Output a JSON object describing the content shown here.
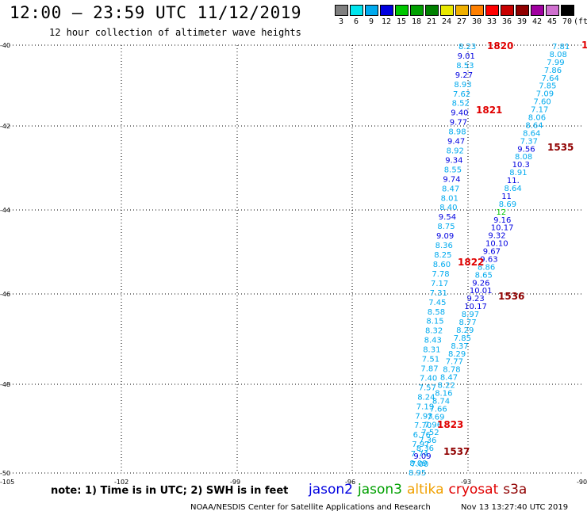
{
  "title": "12:00 – 23:59 UTC 11/12/2019",
  "subtitle": "12 hour collection of altimeter wave heights",
  "legend": {
    "unit": "(ft)",
    "items": [
      {
        "label": "3",
        "color": "#808080"
      },
      {
        "label": "6",
        "color": "#00e5ee"
      },
      {
        "label": "9",
        "color": "#00aaee"
      },
      {
        "label": "12",
        "color": "#0000e0"
      },
      {
        "label": "15",
        "color": "#00c800"
      },
      {
        "label": "18",
        "color": "#00a000"
      },
      {
        "label": "21",
        "color": "#008000"
      },
      {
        "label": "24",
        "color": "#e8e800"
      },
      {
        "label": "27",
        "color": "#f0b000"
      },
      {
        "label": "30",
        "color": "#ff8000"
      },
      {
        "label": "33",
        "color": "#ff0000"
      },
      {
        "label": "36",
        "color": "#c80000"
      },
      {
        "label": "39",
        "color": "#900000"
      },
      {
        "label": "42",
        "color": "#a000a0"
      },
      {
        "label": "45",
        "color": "#d070d0"
      },
      {
        "label": "70",
        "color": "#000000"
      }
    ]
  },
  "axes": {
    "lat_labels": [
      "-40",
      "-42",
      "-44",
      "-46",
      "-48",
      "-50"
    ],
    "lon_labels": [
      "-105",
      "-102",
      "-99",
      "-96",
      "-93",
      "-90"
    ]
  },
  "track_a": [
    {
      "v": "8.23",
      "c": "#00aaee"
    },
    {
      "v": "9.01",
      "c": "#0000e0"
    },
    {
      "v": "8.53",
      "c": "#00aaee"
    },
    {
      "v": "9.27",
      "c": "#0000e0"
    },
    {
      "v": "8.93",
      "c": "#00aaee"
    },
    {
      "v": "7.62",
      "c": "#00aaee"
    },
    {
      "v": "8.52",
      "c": "#00aaee"
    },
    {
      "v": "9.40",
      "c": "#0000e0"
    },
    {
      "v": "9.77",
      "c": "#0000e0"
    },
    {
      "v": "8.98",
      "c": "#00aaee"
    },
    {
      "v": "9.47",
      "c": "#0000e0"
    },
    {
      "v": "8.92",
      "c": "#00aaee"
    },
    {
      "v": "9.34",
      "c": "#0000e0"
    },
    {
      "v": "8.55",
      "c": "#00aaee"
    },
    {
      "v": "9.74",
      "c": "#0000e0"
    },
    {
      "v": "8.47",
      "c": "#00aaee"
    },
    {
      "v": "8.01",
      "c": "#00aaee"
    },
    {
      "v": "8.40",
      "c": "#00aaee"
    },
    {
      "v": "9.54",
      "c": "#0000e0"
    },
    {
      "v": "8.75",
      "c": "#00aaee"
    },
    {
      "v": "9.09",
      "c": "#0000e0"
    },
    {
      "v": "8.36",
      "c": "#00aaee"
    },
    {
      "v": "8.25",
      "c": "#00aaee"
    },
    {
      "v": "8.60",
      "c": "#00aaee"
    },
    {
      "v": "7.78",
      "c": "#00aaee"
    },
    {
      "v": "7.17",
      "c": "#00aaee"
    },
    {
      "v": "7.31",
      "c": "#00aaee"
    },
    {
      "v": "7.45",
      "c": "#00aaee"
    },
    {
      "v": "8.58",
      "c": "#00aaee"
    },
    {
      "v": "8.15",
      "c": "#00aaee"
    },
    {
      "v": "8.32",
      "c": "#00aaee"
    },
    {
      "v": "8.43",
      "c": "#00aaee"
    },
    {
      "v": "8.31",
      "c": "#00aaee"
    },
    {
      "v": "7.51",
      "c": "#00aaee"
    },
    {
      "v": "7.87",
      "c": "#00aaee"
    },
    {
      "v": "7.40",
      "c": "#00aaee"
    },
    {
      "v": "7.57",
      "c": "#00aaee"
    },
    {
      "v": "8.24",
      "c": "#00aaee"
    },
    {
      "v": "7.19",
      "c": "#00aaee"
    },
    {
      "v": "7.93",
      "c": "#00aaee"
    },
    {
      "v": "7.70",
      "c": "#00aaee"
    },
    {
      "v": "6.76",
      "c": "#00aaee"
    },
    {
      "v": "7.97",
      "c": "#00aaee"
    },
    {
      "v": "7.74",
      "c": "#00aaee"
    },
    {
      "v": "8.09",
      "c": "#00aaee"
    },
    {
      "v": "8.95",
      "c": "#00aaee"
    }
  ],
  "track_b": [
    {
      "v": "7.81",
      "c": "#00aaee"
    },
    {
      "v": "8.08",
      "c": "#00aaee"
    },
    {
      "v": "7.99",
      "c": "#00aaee"
    },
    {
      "v": "7.86",
      "c": "#00aaee"
    },
    {
      "v": "7.64",
      "c": "#00aaee"
    },
    {
      "v": "7.85",
      "c": "#00aaee"
    },
    {
      "v": "7.09",
      "c": "#00aaee"
    },
    {
      "v": "7.60",
      "c": "#00aaee"
    },
    {
      "v": "7.17",
      "c": "#00aaee"
    },
    {
      "v": "8.06",
      "c": "#00aaee"
    },
    {
      "v": "8.64",
      "c": "#00aaee"
    },
    {
      "v": "8.64",
      "c": "#00aaee"
    },
    {
      "v": "7.37",
      "c": "#00aaee"
    },
    {
      "v": "9.56",
      "c": "#0000e0"
    },
    {
      "v": "8.08",
      "c": "#00aaee"
    },
    {
      "v": "10.3",
      "c": "#0000e0"
    },
    {
      "v": "8.91",
      "c": "#00aaee"
    },
    {
      "v": "11.",
      "c": "#0000e0"
    },
    {
      "v": "8.64",
      "c": "#00aaee"
    },
    {
      "v": "11",
      "c": "#0000e0"
    },
    {
      "v": "8.69",
      "c": "#00aaee"
    },
    {
      "v": "12",
      "c": "#00c800"
    },
    {
      "v": "9.16",
      "c": "#0000e0"
    },
    {
      "v": "10.17",
      "c": "#0000e0"
    },
    {
      "v": "9.32",
      "c": "#0000e0"
    },
    {
      "v": "10.10",
      "c": "#0000e0"
    },
    {
      "v": "9.67",
      "c": "#0000e0"
    },
    {
      "v": "9.63",
      "c": "#0000e0"
    },
    {
      "v": "8.86",
      "c": "#00aaee"
    },
    {
      "v": "8.65",
      "c": "#00aaee"
    },
    {
      "v": "9.26",
      "c": "#0000e0"
    },
    {
      "v": "10.01",
      "c": "#0000e0"
    },
    {
      "v": "9.23",
      "c": "#0000e0"
    },
    {
      "v": "10.17",
      "c": "#0000e0"
    },
    {
      "v": "8.97",
      "c": "#00aaee"
    },
    {
      "v": "8.77",
      "c": "#00aaee"
    },
    {
      "v": "8.29",
      "c": "#00aaee"
    },
    {
      "v": "7.85",
      "c": "#00aaee"
    },
    {
      "v": "8.37",
      "c": "#00aaee"
    },
    {
      "v": "8.29",
      "c": "#00aaee"
    },
    {
      "v": "7.77",
      "c": "#00aaee"
    },
    {
      "v": "8.78",
      "c": "#00aaee"
    },
    {
      "v": "8.47",
      "c": "#00aaee"
    },
    {
      "v": "8.22",
      "c": "#00aaee"
    },
    {
      "v": "8.16",
      "c": "#00aaee"
    },
    {
      "v": "8.74",
      "c": "#00aaee"
    },
    {
      "v": "7.66",
      "c": "#00aaee"
    },
    {
      "v": "7.69",
      "c": "#00aaee"
    },
    {
      "v": "7.96",
      "c": "#00aaee"
    },
    {
      "v": "7.52",
      "c": "#00aaee"
    },
    {
      "v": "7.36",
      "c": "#00aaee"
    },
    {
      "v": "8.36",
      "c": "#00aaee"
    },
    {
      "v": "9.09",
      "c": "#0000e0"
    },
    {
      "v": "7.00",
      "c": "#00aaee"
    }
  ],
  "time_labels": [
    {
      "text": "1820",
      "color": "#e00000"
    },
    {
      "text": "1",
      "color": "#e00000"
    },
    {
      "text": "1821",
      "color": "#e00000"
    },
    {
      "text": "1535",
      "color": "#900000"
    },
    {
      "text": "1822",
      "color": "#e00000"
    },
    {
      "text": "1536",
      "color": "#900000"
    },
    {
      "text": "1823",
      "color": "#e00000"
    },
    {
      "text": "1537",
      "color": "#900000"
    }
  ],
  "note": "note: 1) Time is in UTC; 2) SWH is in feet",
  "satellites": [
    {
      "name": "jason2",
      "color": "#0000e0"
    },
    {
      "name": "jason3",
      "color": "#00a000"
    },
    {
      "name": "altika",
      "color": "#f0a000"
    },
    {
      "name": "cryosat",
      "color": "#e00000"
    },
    {
      "name": "s3a",
      "color": "#900000"
    }
  ],
  "credit": "NOAA/NESDIS Center for Satellite Applications and Research",
  "stamp": "Nov 13 13:27:40 UTC 2019"
}
